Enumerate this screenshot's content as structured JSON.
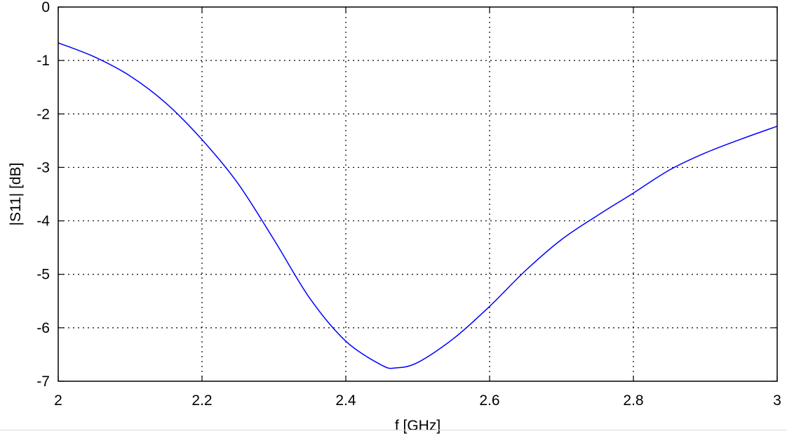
{
  "chart_data": {
    "type": "line",
    "title": "",
    "xlabel": "f [GHz]",
    "ylabel": "|S11| [dB]",
    "xlim": [
      2,
      3
    ],
    "ylim": [
      -7,
      0
    ],
    "xticks": [
      "2",
      "2.2",
      "2.4",
      "2.6",
      "2.8",
      "3"
    ],
    "yticks": [
      "0",
      "-1",
      "-2",
      "-3",
      "-4",
      "-5",
      "-6",
      "-7"
    ],
    "grid": true,
    "series": [
      {
        "color": "#0000ff",
        "x": [
          2.0,
          2.05,
          2.1,
          2.15,
          2.2,
          2.25,
          2.3,
          2.35,
          2.4,
          2.45,
          2.47,
          2.5,
          2.55,
          2.6,
          2.65,
          2.7,
          2.75,
          2.8,
          2.85,
          2.9,
          2.95,
          3.0
        ],
        "y": [
          -0.67,
          -0.93,
          -1.29,
          -1.8,
          -2.48,
          -3.3,
          -4.35,
          -5.45,
          -6.25,
          -6.7,
          -6.75,
          -6.65,
          -6.2,
          -5.6,
          -4.93,
          -4.35,
          -3.9,
          -3.48,
          -3.05,
          -2.73,
          -2.47,
          -2.23
        ]
      }
    ]
  }
}
